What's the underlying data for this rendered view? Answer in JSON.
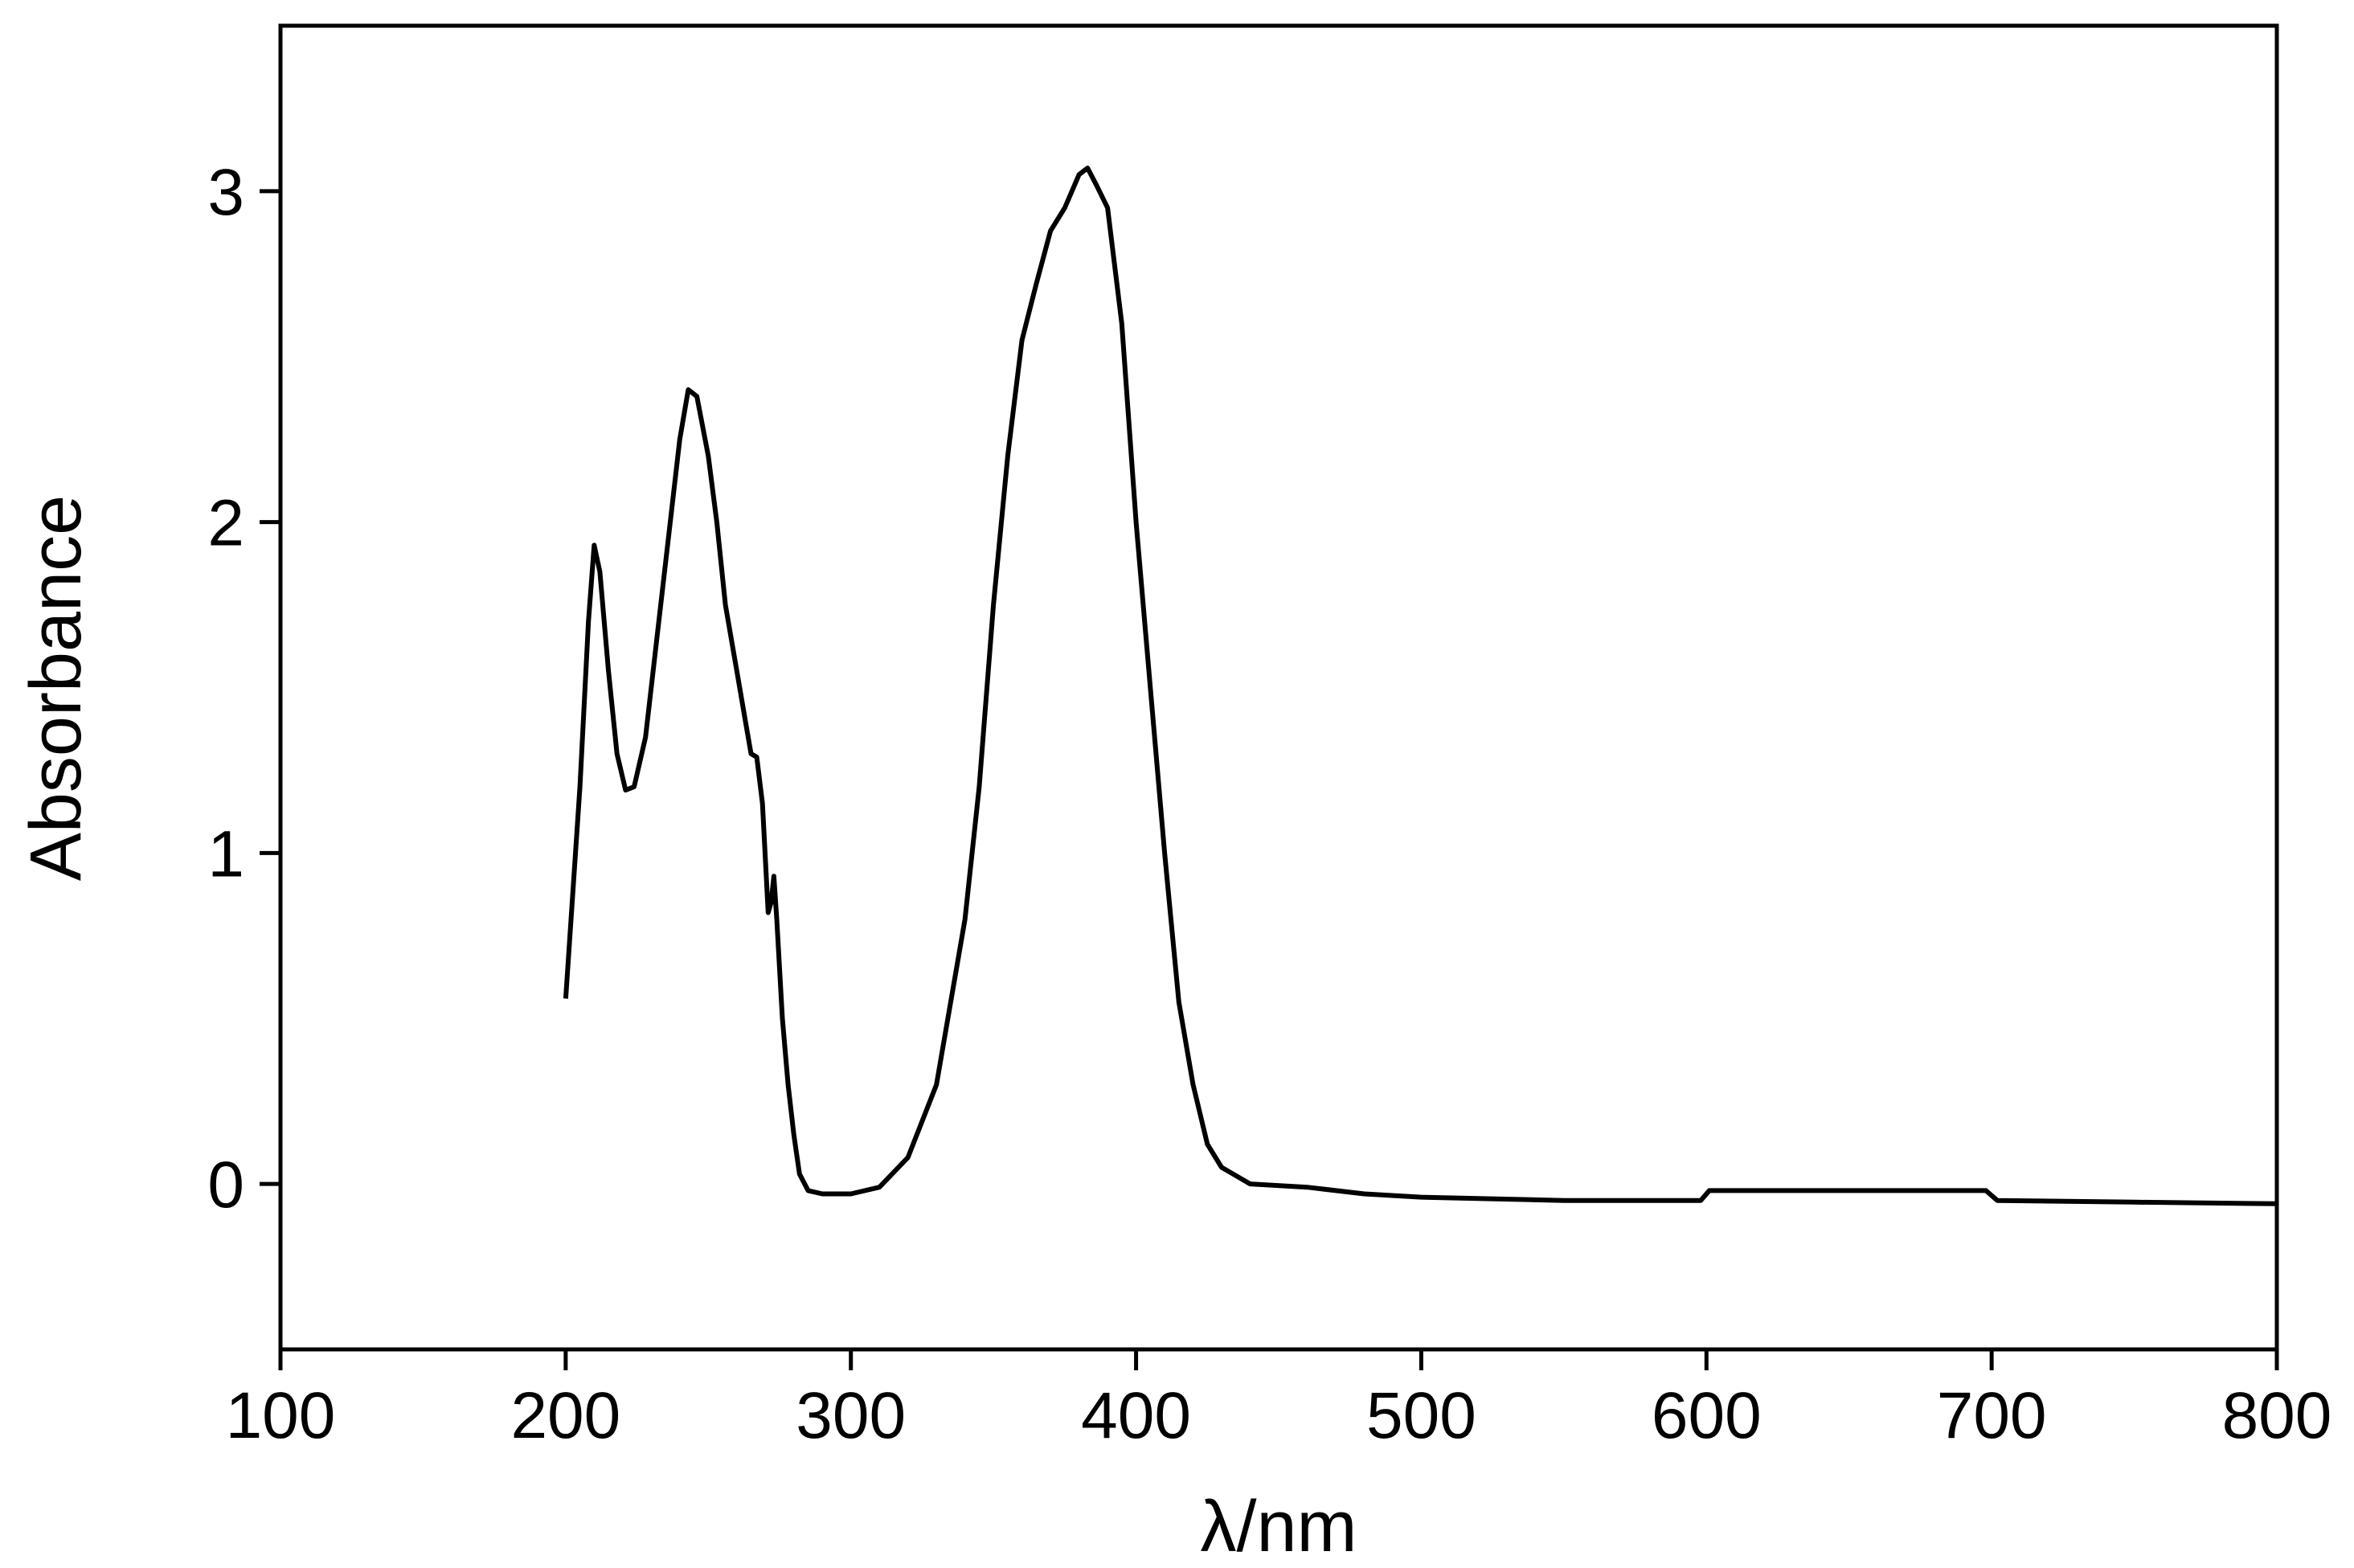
{
  "chart_data": {
    "type": "line",
    "x_label": "λ/nm",
    "y_label": "Absorbance",
    "xlim": [
      100,
      800
    ],
    "xticks": [
      100,
      200,
      300,
      400,
      500,
      600,
      700,
      800
    ],
    "ylim": [
      -0.5,
      3.5
    ],
    "yticks": [
      0,
      1,
      2,
      3
    ],
    "grid": false,
    "series": [
      {
        "color": "#000000",
        "x": [
          200,
          205,
          208,
          210,
          212,
          215,
          218,
          221,
          224,
          228,
          232,
          236,
          240,
          243,
          246,
          250,
          253,
          256,
          260,
          263,
          265,
          267,
          269,
          271,
          272,
          273,
          274,
          276,
          278,
          280,
          282,
          285,
          290,
          300,
          310,
          320,
          330,
          340,
          345,
          350,
          355,
          360,
          365,
          370,
          375,
          380,
          383,
          386,
          390,
          395,
          400,
          405,
          410,
          415,
          420,
          425,
          430,
          440,
          460,
          480,
          500,
          550,
          598,
          601,
          650,
          698,
          702,
          750,
          800
        ],
        "values": [
          0.56,
          1.2,
          1.7,
          1.93,
          1.85,
          1.55,
          1.3,
          1.19,
          1.2,
          1.35,
          1.65,
          1.95,
          2.25,
          2.4,
          2.38,
          2.2,
          2.0,
          1.75,
          1.55,
          1.4,
          1.3,
          1.29,
          1.15,
          0.82,
          0.85,
          0.93,
          0.8,
          0.5,
          0.3,
          0.15,
          0.03,
          -0.02,
          -0.03,
          -0.03,
          -0.01,
          0.08,
          0.3,
          0.8,
          1.2,
          1.75,
          2.2,
          2.55,
          2.72,
          2.88,
          2.95,
          3.05,
          3.07,
          3.02,
          2.95,
          2.6,
          2.0,
          1.5,
          1.0,
          0.55,
          0.3,
          0.12,
          0.05,
          0.0,
          -0.01,
          -0.03,
          -0.04,
          -0.05,
          -0.05,
          -0.02,
          -0.02,
          -0.02,
          -0.05,
          -0.055,
          -0.06
        ]
      }
    ]
  }
}
